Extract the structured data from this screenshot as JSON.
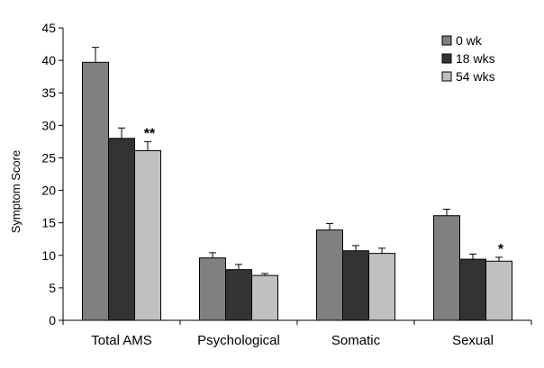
{
  "chart_data": {
    "type": "bar",
    "title": "",
    "xlabel": "",
    "ylabel": "Symptom Score",
    "ylim": [
      0,
      45
    ],
    "yticks": [
      "0",
      "5",
      "10",
      "15",
      "20",
      "25",
      "30",
      "35",
      "40",
      "45"
    ],
    "categories": [
      "Total AMS",
      "Psychological",
      "Somatic",
      "Sexual"
    ],
    "series": [
      {
        "name": "0 wk",
        "color": "#808080",
        "values": [
          39.7,
          9.6,
          13.9,
          16.1
        ],
        "errors": [
          2.3,
          0.8,
          1.0,
          1.0
        ]
      },
      {
        "name": "18 wks",
        "color": "#333333",
        "values": [
          28.0,
          7.8,
          10.7,
          9.4
        ],
        "errors": [
          1.6,
          0.8,
          0.8,
          0.8
        ]
      },
      {
        "name": "54 wks",
        "color": "#c0c0c0",
        "values": [
          26.1,
          6.9,
          10.3,
          9.1
        ],
        "errors": [
          1.4,
          0.3,
          0.8,
          0.6
        ]
      }
    ],
    "annotations": [
      {
        "text": "**",
        "category": "Total AMS",
        "series": "54 wks"
      },
      {
        "text": "*",
        "category": "Sexual",
        "series": "54 wks"
      }
    ],
    "legend_position": "top-right",
    "grid": false
  }
}
